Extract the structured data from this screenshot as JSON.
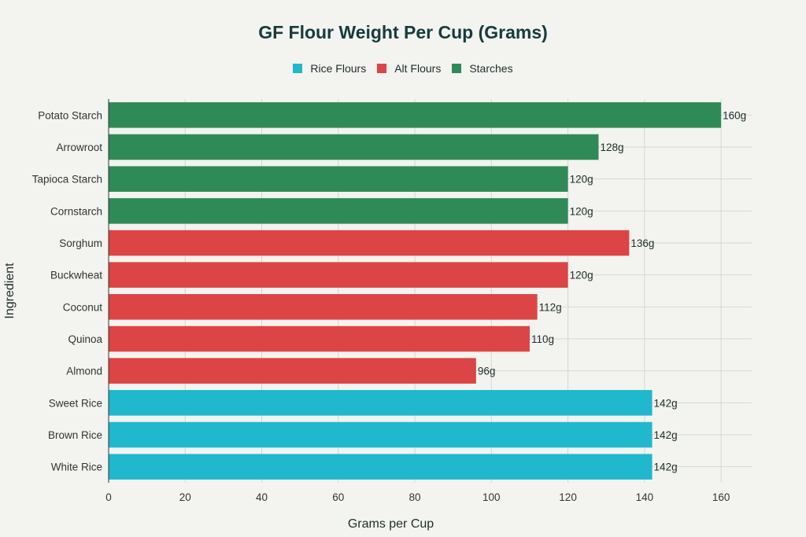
{
  "chart_data": {
    "type": "bar",
    "orientation": "horizontal",
    "title": "GF Flour Weight Per Cup (Grams)",
    "xlabel": "Grams per Cup",
    "ylabel": "Ingredient",
    "xlim": [
      0,
      168
    ],
    "xticks": [
      0,
      20,
      40,
      60,
      80,
      100,
      120,
      140,
      160
    ],
    "grid": true,
    "legend_position": "top-center",
    "legend": [
      {
        "name": "Rice Flours",
        "color": "#1fb8cd"
      },
      {
        "name": "Alt Flours",
        "color": "#db4545"
      },
      {
        "name": "Starches",
        "color": "#2e8b57"
      }
    ],
    "bars": [
      {
        "category": "Potato Starch",
        "value": 160,
        "label": "160g",
        "group": "Starches"
      },
      {
        "category": "Arrowroot",
        "value": 128,
        "label": "128g",
        "group": "Starches"
      },
      {
        "category": "Tapioca Starch",
        "value": 120,
        "label": "120g",
        "group": "Starches"
      },
      {
        "category": "Cornstarch",
        "value": 120,
        "label": "120g",
        "group": "Starches"
      },
      {
        "category": "Sorghum",
        "value": 136,
        "label": "136g",
        "group": "Alt Flours"
      },
      {
        "category": "Buckwheat",
        "value": 120,
        "label": "120g",
        "group": "Alt Flours"
      },
      {
        "category": "Coconut",
        "value": 112,
        "label": "112g",
        "group": "Alt Flours"
      },
      {
        "category": "Quinoa",
        "value": 110,
        "label": "110g",
        "group": "Alt Flours"
      },
      {
        "category": "Almond",
        "value": 96,
        "label": "96g",
        "group": "Alt Flours"
      },
      {
        "category": "Sweet Rice",
        "value": 142,
        "label": "142g",
        "group": "Rice Flours"
      },
      {
        "category": "Brown Rice",
        "value": 142,
        "label": "142g",
        "group": "Rice Flours"
      },
      {
        "category": "White Rice",
        "value": 142,
        "label": "142g",
        "group": "Rice Flours"
      }
    ]
  }
}
